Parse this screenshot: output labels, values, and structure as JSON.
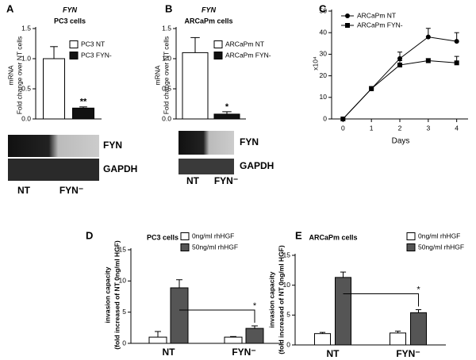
{
  "chart_data": [
    {
      "panel": "A",
      "type": "bar",
      "title": "FYN",
      "subtitle": "PC3 cells",
      "y_label": [
        "mRNA",
        "Fold change over NT cells"
      ],
      "series": [
        {
          "name": "PC3 NT",
          "color": "#ffffff",
          "values": [
            1.0
          ],
          "errors": [
            0.2
          ]
        },
        {
          "name": "PC3 FYN-",
          "color": "#111111",
          "values": [
            0.18
          ],
          "errors": [
            0.02
          ]
        }
      ],
      "ylim": [
        0,
        1.5
      ],
      "yticks": [
        {
          "value": 0,
          "label": "0.0"
        },
        0.5,
        {
          "value": 1,
          "label": "1.0"
        },
        1.5
      ],
      "annotations": [
        "**"
      ],
      "blot": {
        "bands": [
          "FYN",
          "GAPDH"
        ],
        "lanes": [
          "NT",
          "FYN⁻"
        ]
      }
    },
    {
      "panel": "B",
      "type": "bar",
      "title": "FYN",
      "subtitle": "ARCaPm cells",
      "y_label": [
        "mRNA",
        "Fold change over NT cells"
      ],
      "series": [
        {
          "name": "ARCaPm NT",
          "color": "#ffffff",
          "values": [
            1.1
          ],
          "errors": [
            0.25
          ]
        },
        {
          "name": "ARCaPm FYN-",
          "color": "#111111",
          "values": [
            0.08
          ],
          "errors": [
            0.04
          ]
        }
      ],
      "ylim": [
        0,
        1.5
      ],
      "yticks": [
        {
          "value": 0,
          "label": "0.0"
        },
        0.5,
        {
          "value": 1,
          "label": "1.0"
        },
        1.5
      ],
      "annotations": [
        "*"
      ],
      "blot": {
        "bands": [
          "FYN",
          "GAPDH"
        ],
        "lanes": [
          "NT",
          "FYN⁻"
        ]
      }
    },
    {
      "panel": "C",
      "type": "line",
      "y_label": [
        "x10⁴"
      ],
      "x_label": "Days",
      "x": [
        0,
        1,
        2,
        3,
        4
      ],
      "xlim": [
        -0.4,
        4.4
      ],
      "xticks": [
        0,
        1,
        2,
        3,
        4
      ],
      "series": [
        {
          "name": "ARCaPm NT",
          "color": "#000000",
          "marker": "circle",
          "values": [
            0,
            14,
            28,
            38,
            36
          ],
          "errors": [
            0,
            1,
            3,
            4,
            4
          ]
        },
        {
          "name": "ARCaPm FYN-",
          "color": "#000000",
          "marker": "square",
          "values": [
            0,
            14,
            25,
            27,
            26
          ],
          "errors": [
            0,
            1,
            2,
            1,
            3
          ]
        }
      ],
      "ylim": [
        0,
        50
      ],
      "yticks": [
        0,
        10,
        20,
        30,
        40,
        50
      ]
    },
    {
      "panel": "D",
      "type": "bar",
      "title": "PC3 cells",
      "y_label": [
        "invasion capacity",
        "(fold increased of NT 0ng/ml HGF)"
      ],
      "categories": [
        "NT",
        "FYN⁻"
      ],
      "series": [
        {
          "name": "0ng/ml rhHGF",
          "color": "#ffffff",
          "values": [
            1.0,
            1.0
          ],
          "errors": [
            0.9,
            0.1
          ]
        },
        {
          "name": "50ng/ml rhHGF",
          "color": "#555555",
          "values": [
            8.9,
            2.4
          ],
          "errors": [
            1.3,
            0.4
          ]
        }
      ],
      "ylim": [
        0,
        15
      ],
      "yticks": [
        0,
        5,
        10,
        15
      ],
      "annotations": [
        "*"
      ]
    },
    {
      "panel": "E",
      "type": "bar",
      "title": "ARCaPm cells",
      "y_label": [
        "invasion capacity",
        "(fold increased of NT 0ng/ml HGF)"
      ],
      "categories": [
        "NT",
        "FYN⁻"
      ],
      "series": [
        {
          "name": "0ng/ml rhHGF",
          "color": "#ffffff",
          "values": [
            1.9,
            2.0
          ],
          "errors": [
            0.2,
            0.3
          ]
        },
        {
          "name": "50ng/ml rhHGF",
          "color": "#555555",
          "values": [
            11.3,
            5.4
          ],
          "errors": [
            0.9,
            0.5
          ]
        }
      ],
      "ylim": [
        0,
        15
      ],
      "yticks": [
        0,
        5,
        10,
        15
      ],
      "annotations": [
        "*"
      ]
    }
  ]
}
